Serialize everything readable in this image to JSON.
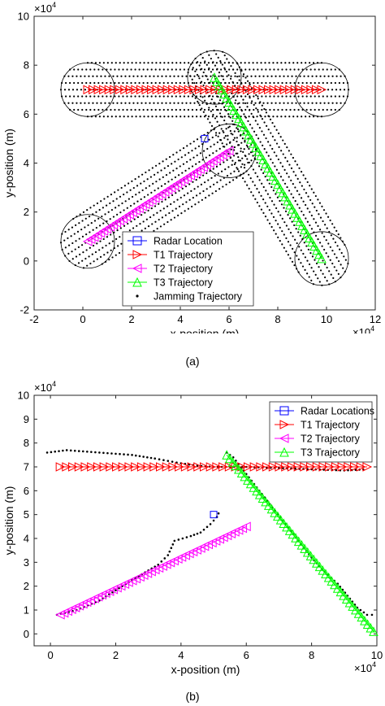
{
  "chart_data": [
    {
      "type": "scatter",
      "caption": "(a)",
      "xlabel": "x-position (m)",
      "ylabel": "y-position (m)",
      "exponent": "×10",
      "exponent_power": "4",
      "xlim": [
        -2,
        12
      ],
      "ylim": [
        -2,
        10
      ],
      "xticks": [
        "-2",
        "0",
        "2",
        "4",
        "6",
        "8",
        "10",
        "12"
      ],
      "yticks": [
        "-2",
        "0",
        "2",
        "4",
        "6",
        "8",
        "10"
      ],
      "legend_position": "bottom-center",
      "legend": [
        {
          "label": "Radar Location",
          "marker": "square",
          "color": "#0000ff"
        },
        {
          "label": "T1 Trajectory",
          "marker": "triangle-right",
          "color": "#ff0000"
        },
        {
          "label": "T2 Trajectory",
          "marker": "triangle-left",
          "color": "#ff00ff"
        },
        {
          "label": "T3 Trajectory",
          "marker": "triangle-up",
          "color": "#00ff00"
        },
        {
          "label": "Jamming Trajectory",
          "marker": "dot",
          "color": "#000000"
        }
      ],
      "radar": [
        5.0,
        5.0
      ],
      "series": [
        {
          "name": "T1 Trajectory",
          "x_start": 0.2,
          "x_end": 9.8,
          "y_start": 7.0,
          "y_end": 7.0,
          "count": 45
        },
        {
          "name": "T2 Trajectory",
          "x_start": 0.2,
          "x_end": 6.0,
          "y_start": 0.8,
          "y_end": 4.5,
          "count": 45
        },
        {
          "name": "T3 Trajectory",
          "x_start": 5.4,
          "x_end": 9.8,
          "y_start": 7.5,
          "y_end": 0.1,
          "count": 45
        }
      ],
      "jamming_regions": [
        {
          "x_start": 0.2,
          "y_start": 7.0,
          "x_end": 9.8,
          "y_end": 7.0,
          "radius": 1.1
        },
        {
          "x_start": 0.2,
          "y_start": 0.8,
          "x_end": 6.0,
          "y_end": 4.5,
          "radius": 1.1
        },
        {
          "x_start": 5.4,
          "y_start": 7.5,
          "x_end": 9.8,
          "y_end": 0.1,
          "radius": 1.1
        }
      ]
    },
    {
      "type": "scatter",
      "caption": "(b)",
      "xlabel": "x-position (m)",
      "ylabel": "y-position (m)",
      "exponent": "×10",
      "exponent_power": "4",
      "xlim": [
        -0.5,
        10
      ],
      "ylim": [
        -0.5,
        10
      ],
      "xticks": [
        "0",
        "2",
        "4",
        "6",
        "8",
        "10"
      ],
      "yticks": [
        "0",
        "1",
        "2",
        "3",
        "4",
        "5",
        "6",
        "7",
        "8",
        "9",
        "10"
      ],
      "legend_position": "top-right",
      "legend": [
        {
          "label": "Radar Locations",
          "marker": "square",
          "color": "#0000ff"
        },
        {
          "label": "T1 Trajectory",
          "marker": "triangle-right",
          "color": "#ff0000"
        },
        {
          "label": "T2 Trajectory",
          "marker": "triangle-left",
          "color": "#ff00ff"
        },
        {
          "label": "T3 Trajectory",
          "marker": "triangle-up",
          "color": "#00ff00"
        }
      ],
      "radar": [
        5.0,
        5.0
      ],
      "series": [
        {
          "name": "T1 Trajectory",
          "x_start": 0.3,
          "x_end": 9.7,
          "y_start": 7.0,
          "y_end": 7.0,
          "count": 50
        },
        {
          "name": "T2 Trajectory",
          "x_start": 0.3,
          "x_end": 6.0,
          "y_start": 0.8,
          "y_end": 4.5,
          "count": 50
        },
        {
          "name": "T3 Trajectory",
          "x_start": 5.4,
          "x_end": 9.9,
          "y_start": 7.5,
          "y_end": 0.1,
          "count": 50
        }
      ],
      "jamming_trajectories": [
        [
          [
            -0.1,
            7.6
          ],
          [
            0.5,
            7.7
          ],
          [
            1.5,
            7.6
          ],
          [
            2.5,
            7.5
          ],
          [
            3.2,
            7.35
          ],
          [
            3.6,
            7.25
          ],
          [
            4.0,
            7.15
          ],
          [
            4.5,
            7.05
          ],
          [
            5.0,
            7.0
          ],
          [
            6.0,
            7.0
          ],
          [
            7.0,
            6.95
          ],
          [
            8.0,
            6.9
          ],
          [
            9.0,
            6.85
          ],
          [
            9.7,
            6.9
          ]
        ],
        [
          [
            0.2,
            0.8
          ],
          [
            0.8,
            1.0
          ],
          [
            1.5,
            1.4
          ],
          [
            2.2,
            2.0
          ],
          [
            2.8,
            2.5
          ],
          [
            3.3,
            2.9
          ],
          [
            3.6,
            3.3
          ],
          [
            3.7,
            3.6
          ],
          [
            3.8,
            3.9
          ],
          [
            4.3,
            4.1
          ],
          [
            4.6,
            4.25
          ],
          [
            4.9,
            4.6
          ],
          [
            5.1,
            4.9
          ],
          [
            5.2,
            5.2
          ]
        ],
        [
          [
            5.4,
            7.6
          ],
          [
            5.6,
            7.4
          ],
          [
            6.0,
            6.7
          ],
          [
            6.4,
            6.0
          ],
          [
            6.8,
            5.3
          ],
          [
            7.2,
            4.6
          ],
          [
            7.6,
            3.9
          ],
          [
            8.0,
            3.2
          ],
          [
            8.4,
            2.6
          ],
          [
            8.8,
            2.1
          ],
          [
            9.1,
            1.6
          ],
          [
            9.4,
            1.1
          ],
          [
            9.7,
            0.8
          ],
          [
            10.0,
            0.8
          ]
        ]
      ]
    }
  ]
}
